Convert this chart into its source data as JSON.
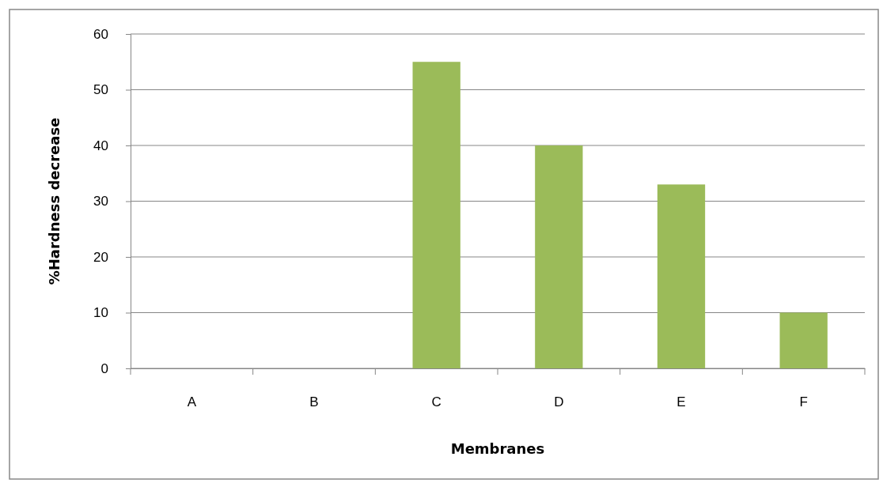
{
  "chart_data": {
    "type": "bar",
    "xlabel": "Membranes",
    "ylabel": "%Hardness decrease",
    "categories": [
      "A",
      "B",
      "C",
      "D",
      "E",
      "F"
    ],
    "values": [
      0,
      0,
      55,
      40,
      33,
      10
    ],
    "color": "#9bbb59",
    "ylim": [
      0,
      60
    ],
    "yticks": [
      0,
      10,
      20,
      30,
      40,
      50,
      60
    ],
    "grid": "y"
  }
}
